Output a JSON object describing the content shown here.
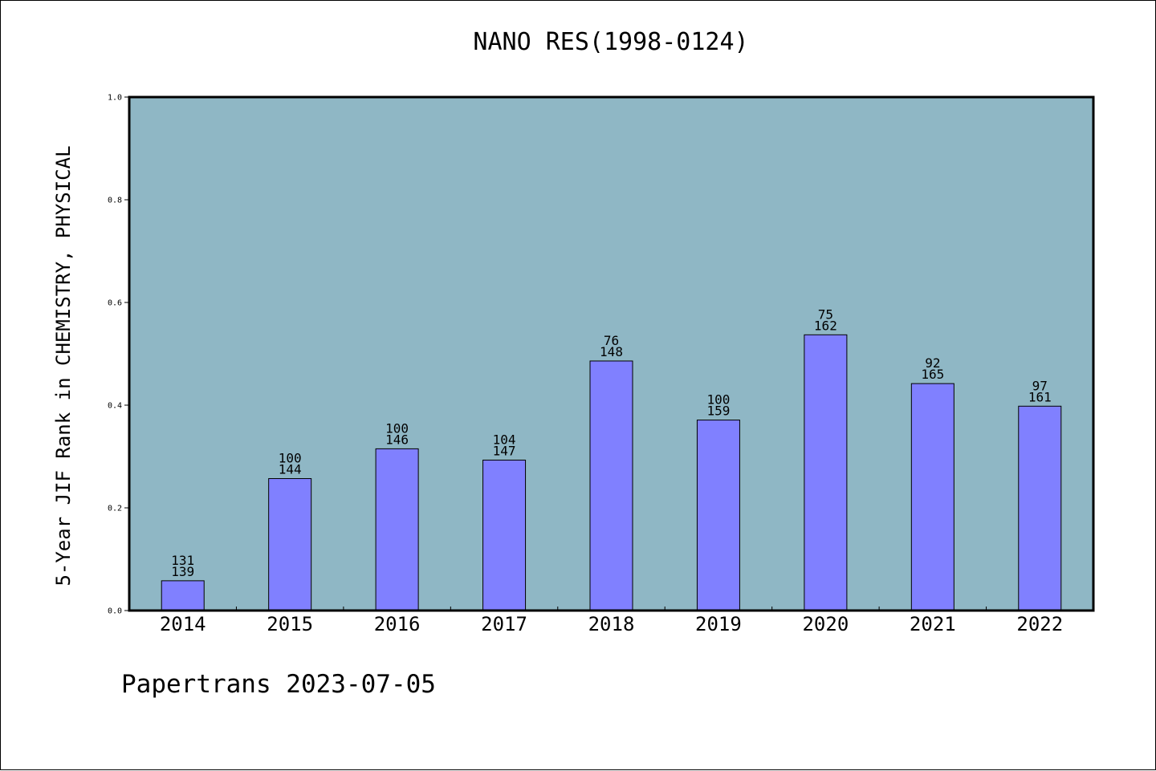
{
  "chart_data": {
    "type": "bar",
    "title": "NANO RES(1998-0124)",
    "xlabel": "",
    "ylabel": "5-Year JIF Rank in CHEMISTRY, PHYSICAL",
    "ylim": [
      0,
      1.0
    ],
    "yticks": [
      "0.0",
      "0.2",
      "0.4",
      "0.6",
      "0.8",
      "1.0"
    ],
    "grid": false,
    "categories": [
      "2014",
      "2015",
      "2016",
      "2017",
      "2018",
      "2019",
      "2020",
      "2021",
      "2022"
    ],
    "values": [
      0.058,
      0.257,
      0.315,
      0.293,
      0.486,
      0.371,
      0.537,
      0.442,
      0.398
    ],
    "rank_labels": [
      "131",
      "100",
      "100",
      "104",
      "76",
      "100",
      "75",
      "92",
      "97"
    ],
    "total_labels": [
      "139",
      "144",
      "146",
      "147",
      "148",
      "159",
      "162",
      "165",
      "161"
    ],
    "colors": {
      "plot_background": "#8fb7c5",
      "bar_fill": "#8080ff",
      "bar_edge": "#000000"
    }
  },
  "footer": {
    "text": "Papertrans 2023-07-05"
  }
}
